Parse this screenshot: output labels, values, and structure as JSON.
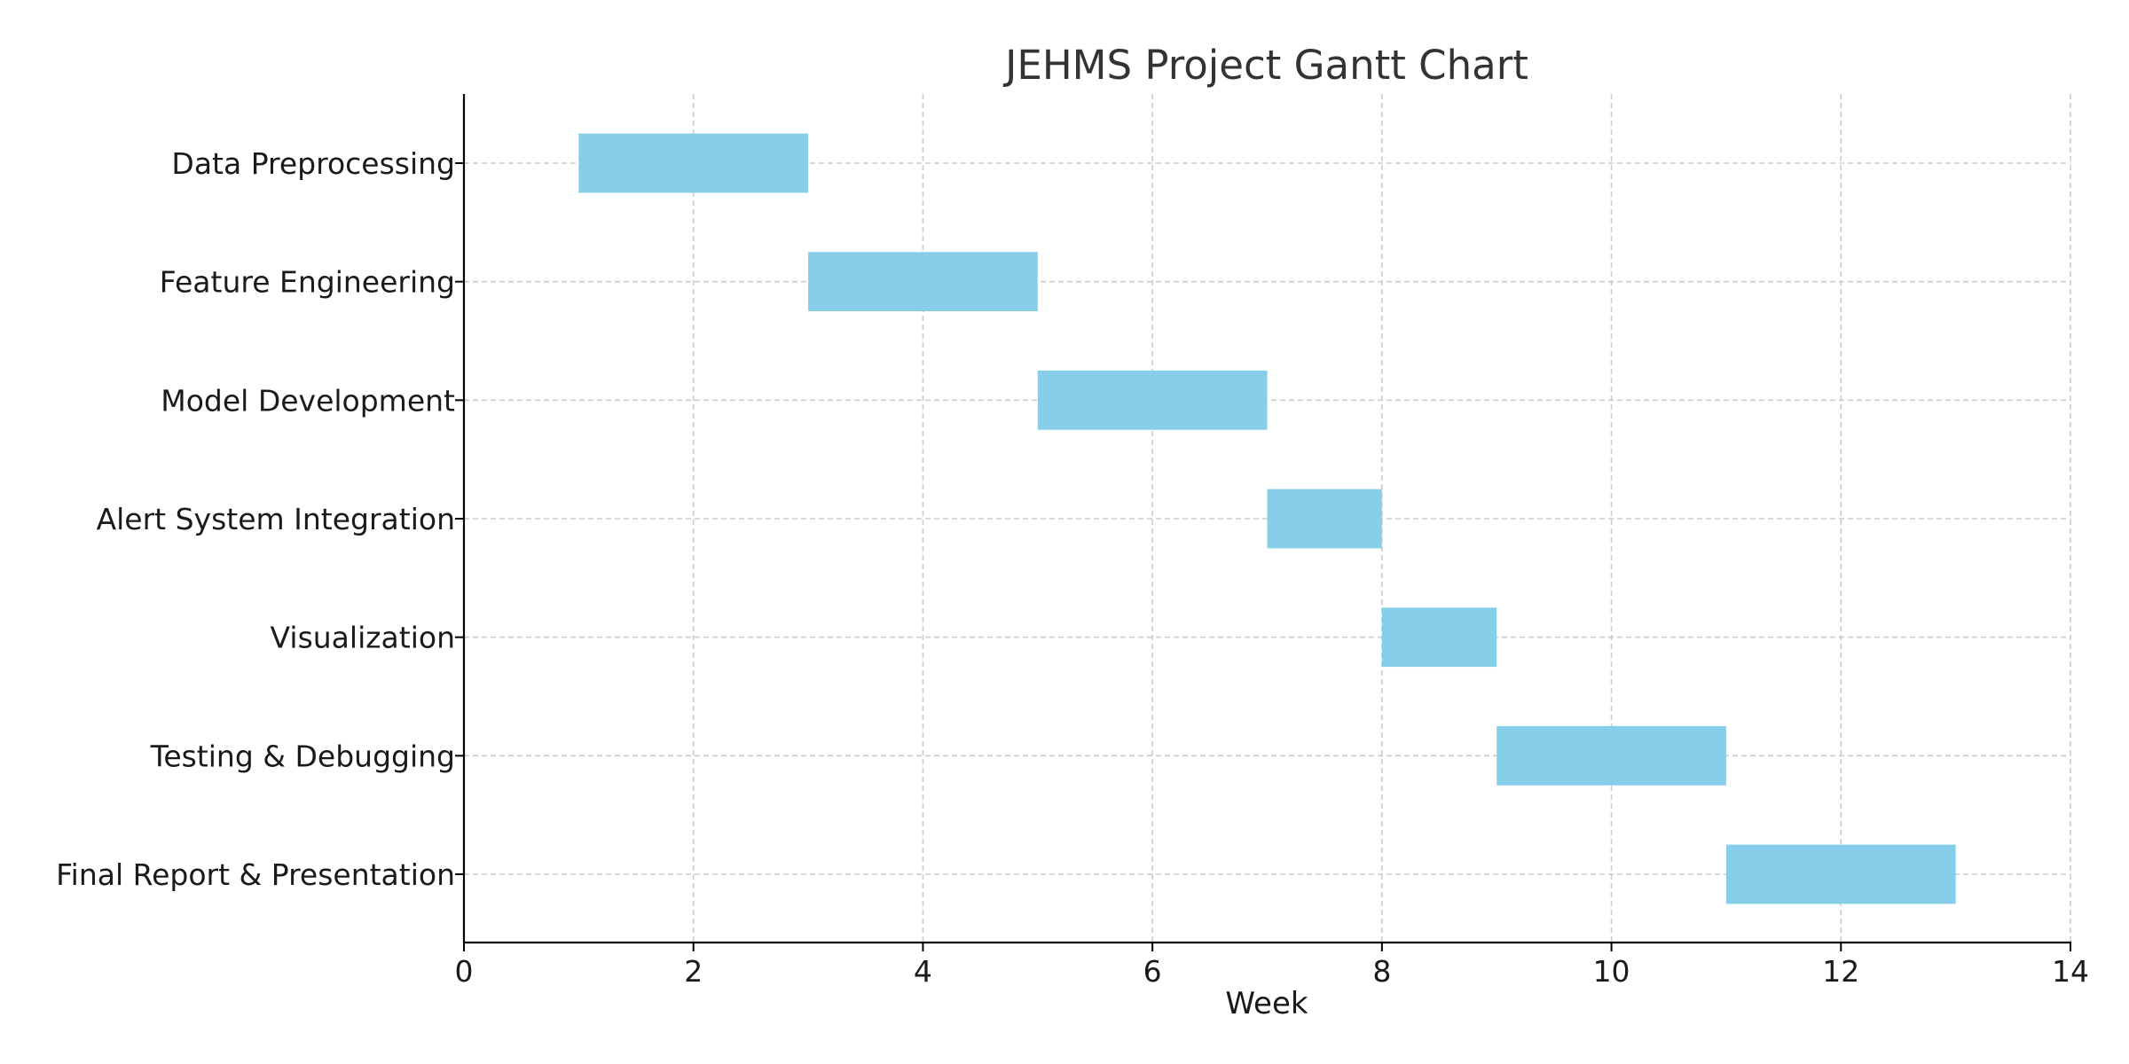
{
  "chart_data": {
    "type": "bar",
    "orientation": "horizontal",
    "title": "JEHMS Project Gantt Chart",
    "xlabel": "Week",
    "ylabel": "",
    "xlim": [
      0,
      14
    ],
    "x_ticks": [
      0,
      2,
      4,
      6,
      8,
      10,
      12,
      14
    ],
    "grid": true,
    "bar_color": "#87CEEB",
    "tasks": [
      {
        "name": "Data Preprocessing",
        "start": 1,
        "duration": 2
      },
      {
        "name": "Feature Engineering",
        "start": 3,
        "duration": 2
      },
      {
        "name": "Model Development",
        "start": 5,
        "duration": 2
      },
      {
        "name": "Alert System Integration",
        "start": 7,
        "duration": 1
      },
      {
        "name": "Visualization",
        "start": 8,
        "duration": 1
      },
      {
        "name": "Testing & Debugging",
        "start": 9,
        "duration": 2
      },
      {
        "name": "Final Report & Presentation",
        "start": 11,
        "duration": 2
      }
    ]
  }
}
